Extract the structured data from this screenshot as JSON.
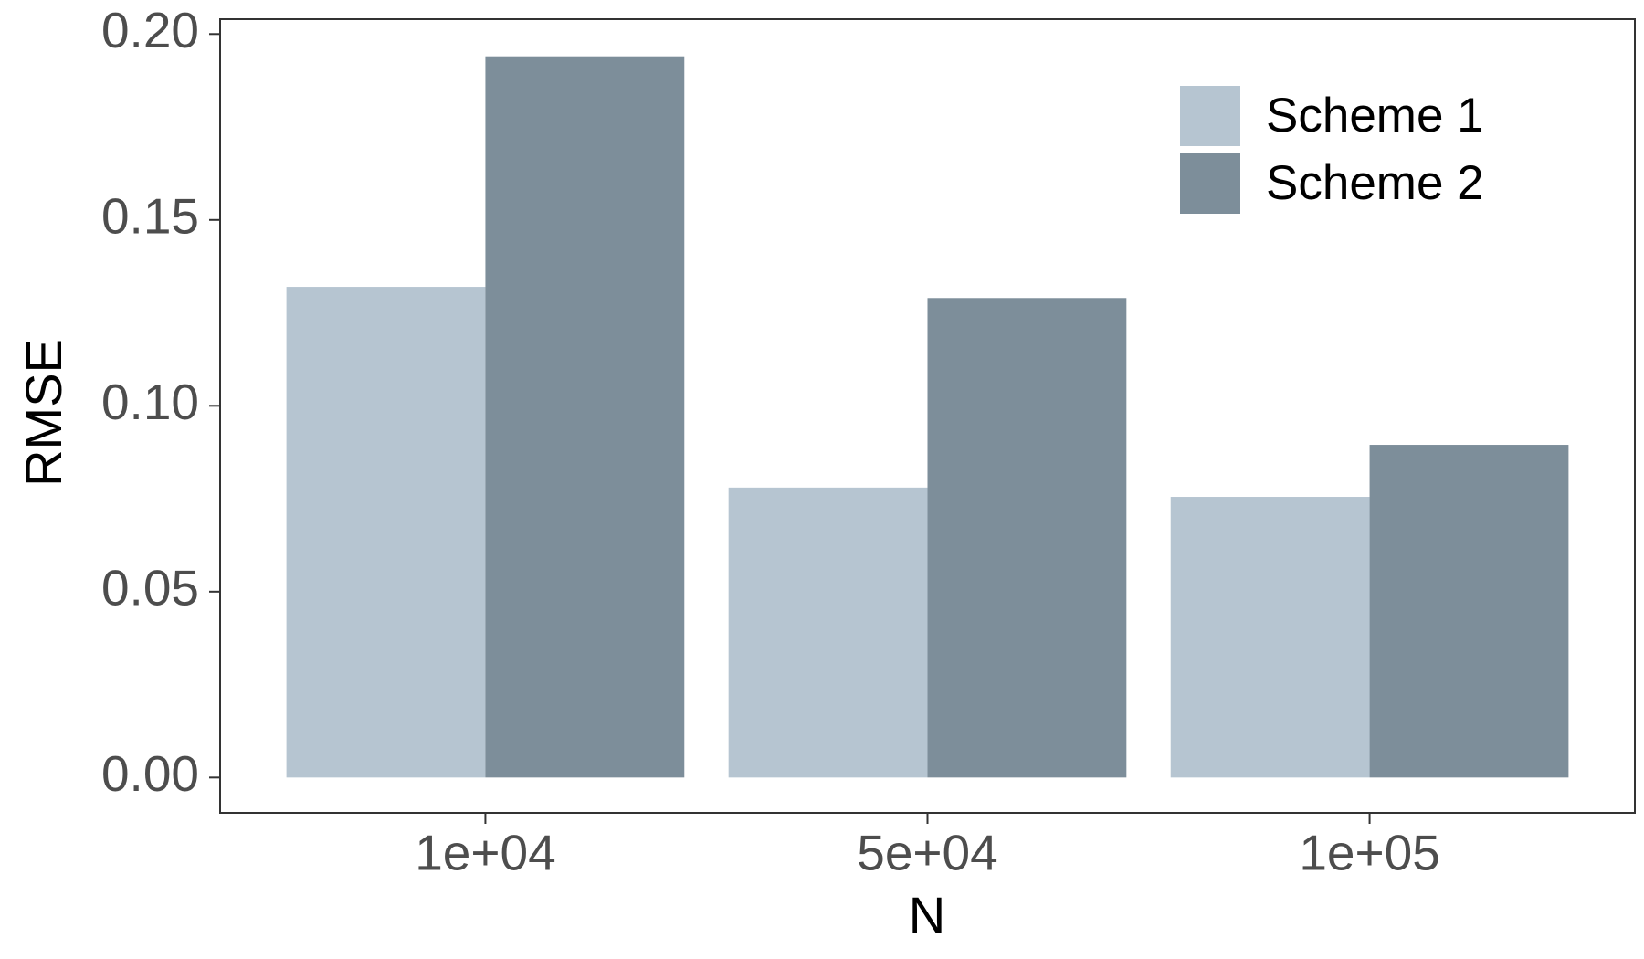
{
  "chart_data": {
    "type": "bar",
    "x_label": "N",
    "y_label": "RMSE",
    "categories": [
      "1e+04",
      "5e+04",
      "1e+05"
    ],
    "series": [
      {
        "name": "Scheme 1",
        "color": "#b6c5d1",
        "values": [
          0.132,
          0.078,
          0.0755
        ]
      },
      {
        "name": "Scheme 2",
        "color": "#7d8e9a",
        "values": [
          0.194,
          0.129,
          0.0895
        ]
      }
    ],
    "ylim": [
      -0.0095,
      0.204
    ],
    "yticks": [
      {
        "value": 0,
        "label": "0.00"
      },
      0.05,
      {
        "value": 0.1,
        "label": "0.10"
      },
      0.15,
      {
        "value": 0.2,
        "label": "0.20"
      }
    ],
    "legend": "top-right"
  }
}
